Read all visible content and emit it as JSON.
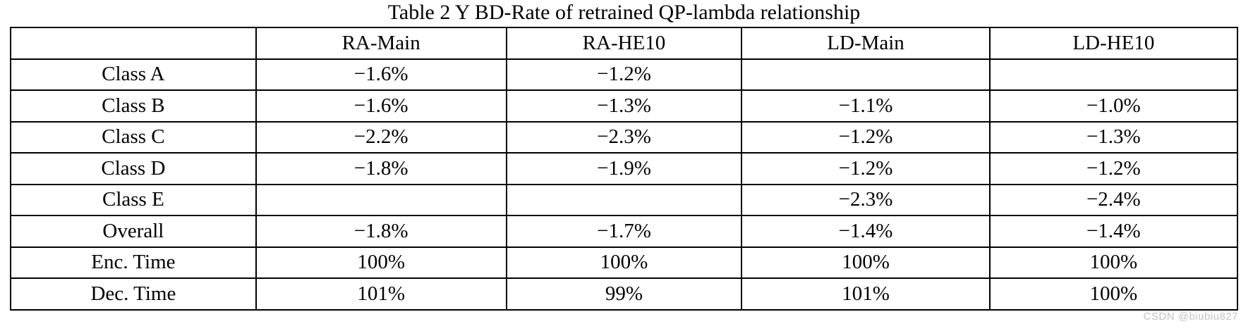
{
  "title": "Table 2 Y BD-Rate of retrained QP-lambda relationship",
  "table": {
    "columns": [
      "",
      "RA-Main",
      "RA-HE10",
      "LD-Main",
      "LD-HE10"
    ],
    "rows": [
      {
        "label": "Class A",
        "values": [
          "−1.6%",
          "−1.2%",
          "",
          ""
        ]
      },
      {
        "label": "Class B",
        "values": [
          "−1.6%",
          "−1.3%",
          "−1.1%",
          "−1.0%"
        ]
      },
      {
        "label": "Class C",
        "values": [
          "−2.2%",
          "−2.3%",
          "−1.2%",
          "−1.3%"
        ]
      },
      {
        "label": "Class D",
        "values": [
          "−1.8%",
          "−1.9%",
          "−1.2%",
          "−1.2%"
        ]
      },
      {
        "label": "Class E",
        "values": [
          "",
          "",
          "−2.3%",
          "−2.4%"
        ]
      },
      {
        "label": "Overall",
        "values": [
          "−1.8%",
          "−1.7%",
          "−1.4%",
          "−1.4%"
        ]
      },
      {
        "label": "Enc. Time",
        "values": [
          "100%",
          "100%",
          "100%",
          "100%"
        ]
      },
      {
        "label": "Dec. Time",
        "values": [
          "101%",
          "99%",
          "101%",
          "100%"
        ]
      }
    ]
  },
  "watermark": "CSDN @biubiu827",
  "colors": {
    "text": "#000000",
    "border": "#000000",
    "background": "#ffffff",
    "watermark": "#c3c3cd"
  }
}
